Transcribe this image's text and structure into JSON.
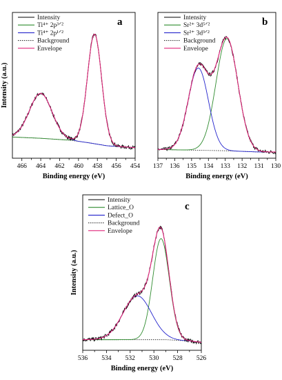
{
  "chart_data": [
    {
      "type": "line",
      "panel_label": "a",
      "xlabel": "Binding energy (eV)",
      "ylabel": "Intensity (a.u.)",
      "xlim": [
        467,
        454
      ],
      "x_ticks": [
        "466",
        "464",
        "462",
        "460",
        "458",
        "456",
        "454"
      ],
      "y_ticks_visible": false,
      "legend_position": "top-left",
      "legend": [
        {
          "label": "Intensity",
          "color": "#000000",
          "dash": false
        },
        {
          "label": "Ti⁴⁺ 2p³ᐟ²",
          "color": "#2e8b2e",
          "dash": false
        },
        {
          "label": "Ti⁴⁺ 2p¹ᐟ²",
          "color": "#2222cc",
          "dash": false
        },
        {
          "label": "Background",
          "color": "#333333",
          "dash": true
        },
        {
          "label": "Envelope",
          "color": "#e0257a",
          "dash": false
        }
      ],
      "background": {
        "x": [
          467,
          464,
          461,
          459,
          457,
          455,
          454
        ],
        "y": [
          0.12,
          0.11,
          0.095,
          0.075,
          0.05,
          0.04,
          0.035
        ]
      },
      "peaks": [
        {
          "center": 458.3,
          "amplitude": 0.88,
          "width": 0.75,
          "color": "#2e8b2e"
        },
        {
          "center": 464.0,
          "amplitude": 0.36,
          "width": 1.2,
          "color": "#2222cc"
        }
      ],
      "ylim": [
        -0.05,
        1.12
      ]
    },
    {
      "type": "line",
      "panel_label": "b",
      "xlabel": "Binding energy (eV)",
      "ylabel": "",
      "xlim": [
        137,
        130
      ],
      "x_ticks": [
        "137",
        "136",
        "135",
        "134",
        "133",
        "132",
        "131",
        "130"
      ],
      "y_ticks_visible": false,
      "legend_position": "top-left",
      "legend": [
        {
          "label": "Intensity",
          "color": "#000000",
          "dash": false
        },
        {
          "label": "Sr²⁺ 3d⁵ᐟ²",
          "color": "#2e8b2e",
          "dash": false
        },
        {
          "label": "Sr²⁺ 3d³ᐟ²",
          "color": "#2222cc",
          "dash": false
        },
        {
          "label": "Background",
          "color": "#333333",
          "dash": true
        },
        {
          "label": "Envelope",
          "color": "#e0257a",
          "dash": false
        }
      ],
      "background": {
        "x": [
          137,
          135,
          133,
          132,
          131,
          130
        ],
        "y": [
          0.02,
          0.015,
          0.01,
          0.005,
          0.0,
          0.0
        ]
      },
      "peaks": [
        {
          "center": 132.9,
          "amplitude": 0.9,
          "width": 0.65,
          "color": "#2e8b2e"
        },
        {
          "center": 134.6,
          "amplitude": 0.66,
          "width": 0.6,
          "color": "#2222cc"
        }
      ],
      "ylim": [
        -0.05,
        1.12
      ]
    },
    {
      "type": "line",
      "panel_label": "c",
      "xlabel": "Binding energy (eV)",
      "ylabel": "Intensity (a.u.)",
      "xlim": [
        536,
        526
      ],
      "x_ticks": [
        "536",
        "534",
        "532",
        "530",
        "528",
        "526"
      ],
      "y_ticks_visible": false,
      "legend_position": "top-left",
      "legend": [
        {
          "label": "Intensity",
          "color": "#000000",
          "dash": false
        },
        {
          "label": "Lattice_O",
          "color": "#2e8b2e",
          "dash": false
        },
        {
          "label": "Defect_O",
          "color": "#2222cc",
          "dash": false
        },
        {
          "label": "Background",
          "color": "#333333",
          "dash": true
        },
        {
          "label": "Envelope",
          "color": "#e0257a",
          "dash": false
        }
      ],
      "background": {
        "x": [
          536,
          533,
          531,
          530,
          529,
          528,
          527,
          526
        ],
        "y": [
          0.03,
          0.03,
          0.03,
          0.03,
          0.03,
          0.025,
          0.02,
          0.01
        ]
      },
      "peaks": [
        {
          "center": 529.4,
          "amplitude": 0.76,
          "width": 0.7,
          "color": "#2e8b2e"
        },
        {
          "center": 531.4,
          "amplitude": 0.33,
          "width": 1.2,
          "color": "#2222cc"
        }
      ],
      "ylim": [
        -0.05,
        1.12
      ]
    }
  ]
}
